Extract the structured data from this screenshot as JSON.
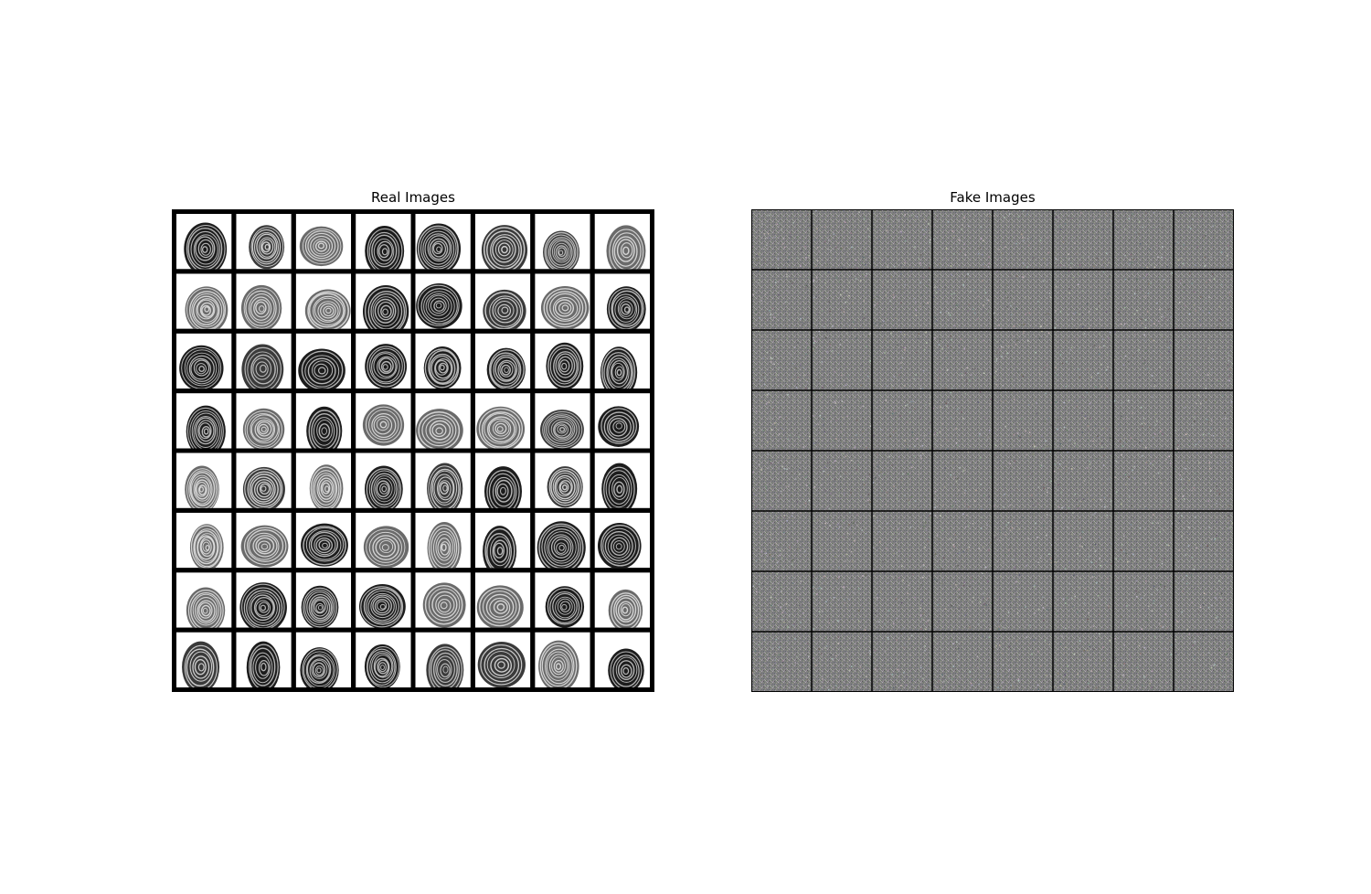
{
  "figure": {
    "panels": [
      {
        "id": "real",
        "title": "Real Images",
        "grid": {
          "rows": 8,
          "cols": 8
        },
        "content": "fingerprint samples",
        "colors": {
          "border": "#000000",
          "paper": "#ffffff",
          "ink": "#111111"
        }
      },
      {
        "id": "fake",
        "title": "Fake Images",
        "grid": {
          "rows": 8,
          "cols": 8
        },
        "content": "generated noise samples",
        "colors": {
          "border": "#000000",
          "base": "#808080"
        }
      }
    ]
  }
}
